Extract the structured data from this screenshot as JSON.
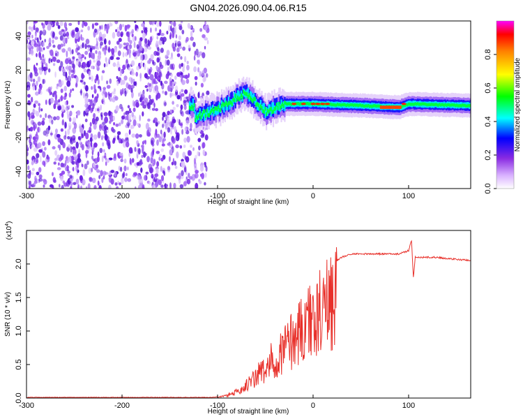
{
  "figure": {
    "title": "GN04.2026.090.04.06.R15"
  },
  "chart_data": [
    {
      "type": "heatmap",
      "title": "GN04.2026.090.04.06.R15",
      "xlabel": "Height of straight line (km)",
      "ylabel": "Frequency (Hz)",
      "xlim": [
        -300,
        165
      ],
      "ylim": [
        -50,
        49
      ],
      "xticks": [
        -300,
        -200,
        -100,
        0,
        100
      ],
      "yticks": [
        -40,
        -20,
        0,
        20,
        40
      ],
      "colorbar": {
        "label": "Normalized spectral amplitude",
        "range": [
          0,
          1
        ],
        "ticks": [
          0.0,
          0.2,
          0.4,
          0.6,
          0.8
        ],
        "tick_labels": [
          "0.0",
          "0.2",
          "0.4",
          "0.6",
          "0.8"
        ],
        "colormap": [
          "#ffffff",
          "#c8a0ff",
          "#8a2be2",
          "#0000ff",
          "#00ffff",
          "#00ff00",
          "#ffff00",
          "#ff8000",
          "#ff0000"
        ]
      },
      "description_points": {
        "noise_region_x": [
          -300,
          -110
        ],
        "signal_track": [
          {
            "x": -125,
            "y": -8
          },
          {
            "x": -110,
            "y": -5
          },
          {
            "x": -100,
            "y": -3
          },
          {
            "x": -90,
            "y": 0
          },
          {
            "x": -80,
            "y": 4
          },
          {
            "x": -70,
            "y": 6
          },
          {
            "x": -60,
            "y": 1
          },
          {
            "x": -50,
            "y": -5
          },
          {
            "x": -40,
            "y": -2
          },
          {
            "x": -30,
            "y": 0
          },
          {
            "x": -20,
            "y": 0
          },
          {
            "x": 0,
            "y": 0
          },
          {
            "x": 50,
            "y": -1
          },
          {
            "x": 90,
            "y": -2
          },
          {
            "x": 100,
            "y": 0
          },
          {
            "x": 165,
            "y": -1
          }
        ]
      }
    },
    {
      "type": "line",
      "xlabel": "Height of straight line (km)",
      "ylabel": "SNR (10 * v/v)",
      "scale_label": "(x10",
      "scale_exponent": "4",
      "scale_close": ")",
      "xlim": [
        -300,
        165
      ],
      "ylim": [
        0,
        2.5
      ],
      "xticks": [
        -300,
        -200,
        -100,
        0,
        100
      ],
      "yticks": [
        0.0,
        0.5,
        1.0,
        1.5,
        2.0
      ],
      "ytick_labels": [
        "0.0",
        "0.5",
        "1.0",
        "1.5",
        "2.0"
      ],
      "series": [
        {
          "name": "SNR",
          "color": "#e8302a",
          "x": [
            -300,
            -200,
            -105,
            -100,
            -90,
            -80,
            -70,
            -60,
            -55,
            -50,
            -45,
            -40,
            -35,
            -30,
            -25,
            -20,
            -15,
            -10,
            -5,
            0,
            5,
            10,
            15,
            20,
            25,
            30,
            40,
            50,
            60,
            70,
            80,
            90,
            100,
            103,
            105,
            107,
            110,
            120,
            130,
            140,
            150,
            165
          ],
          "y": [
            0.01,
            0.01,
            0.01,
            0.02,
            0.05,
            0.12,
            0.25,
            0.4,
            0.55,
            0.5,
            0.7,
            0.8,
            0.9,
            1.0,
            1.1,
            1.2,
            1.3,
            1.45,
            1.5,
            1.55,
            1.65,
            1.8,
            1.95,
            2.0,
            2.05,
            2.1,
            2.15,
            2.15,
            2.15,
            2.15,
            2.15,
            2.15,
            2.2,
            2.35,
            1.8,
            2.1,
            2.1,
            2.1,
            2.1,
            2.08,
            2.07,
            2.05
          ]
        }
      ]
    }
  ]
}
